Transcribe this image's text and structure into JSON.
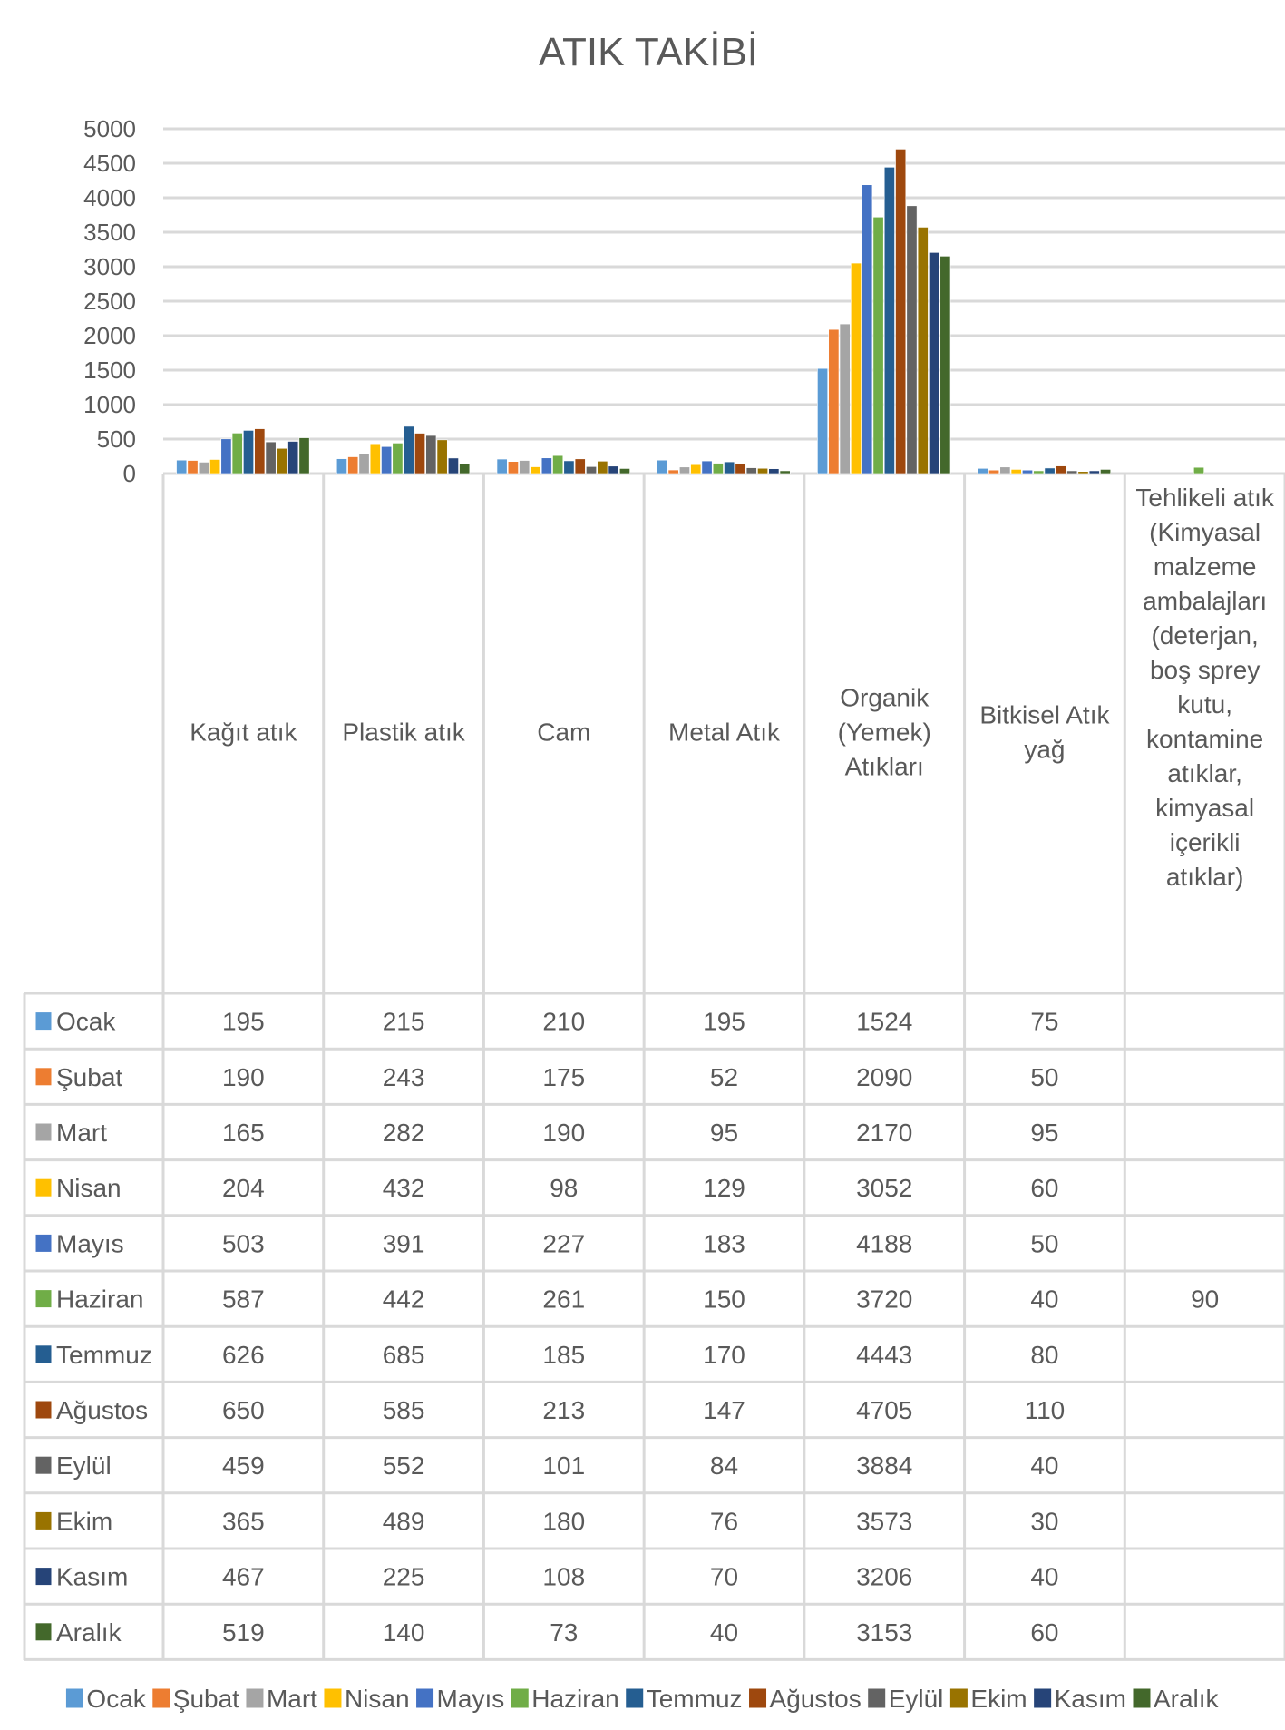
{
  "chart_data": {
    "type": "bar",
    "title": "ATIK TAKİBİ",
    "xlabel": "",
    "ylabel": "",
    "ylim": [
      0,
      5000
    ],
    "yticks": [
      0,
      500,
      1000,
      1500,
      2000,
      2500,
      3000,
      3500,
      4000,
      4500,
      5000
    ],
    "grid": true,
    "legend_position": "bottom",
    "data_table": true,
    "categories": [
      [
        "Kağıt atık"
      ],
      [
        "Plastik atık"
      ],
      [
        "Cam"
      ],
      [
        "Metal Atık"
      ],
      [
        "Organik",
        "(Yemek)",
        "Atıkları"
      ],
      [
        "Bitkisel Atık",
        "yağ"
      ],
      [
        "Tehlikeli atık",
        "(Kimyasal",
        "malzeme",
        "ambalajları",
        "(deterjan,",
        "boş sprey",
        "kutu,",
        "kontamine",
        "atıklar,",
        "kimyasal",
        "içerikli",
        "atıklar)"
      ]
    ],
    "series": [
      {
        "name": "Ocak",
        "color": "#5B9BD5",
        "values": [
          195,
          215,
          210,
          195,
          1524,
          75,
          null
        ]
      },
      {
        "name": "Şubat",
        "color": "#ED7D31",
        "values": [
          190,
          243,
          175,
          52,
          2090,
          50,
          null
        ]
      },
      {
        "name": "Mart",
        "color": "#A5A5A5",
        "values": [
          165,
          282,
          190,
          95,
          2170,
          95,
          null
        ]
      },
      {
        "name": "Nisan",
        "color": "#FFC000",
        "values": [
          204,
          432,
          98,
          129,
          3052,
          60,
          null
        ]
      },
      {
        "name": "Mayıs",
        "color": "#4472C4",
        "values": [
          503,
          391,
          227,
          183,
          4188,
          50,
          null
        ]
      },
      {
        "name": "Haziran",
        "color": "#70AD47",
        "values": [
          587,
          442,
          261,
          150,
          3720,
          40,
          90
        ]
      },
      {
        "name": "Temmuz",
        "color": "#255E91",
        "values": [
          626,
          685,
          185,
          170,
          4443,
          80,
          null
        ]
      },
      {
        "name": "Ağustos",
        "color": "#9E480E",
        "values": [
          650,
          585,
          213,
          147,
          4705,
          110,
          null
        ]
      },
      {
        "name": "Eylül",
        "color": "#636363",
        "values": [
          459,
          552,
          101,
          84,
          3884,
          40,
          null
        ]
      },
      {
        "name": "Ekim",
        "color": "#997300",
        "values": [
          365,
          489,
          180,
          76,
          3573,
          30,
          null
        ]
      },
      {
        "name": "Kasım",
        "color": "#264478",
        "values": [
          467,
          225,
          108,
          70,
          3206,
          40,
          null
        ]
      },
      {
        "name": "Aralık",
        "color": "#43682B",
        "values": [
          519,
          140,
          73,
          40,
          3153,
          60,
          null
        ]
      }
    ]
  }
}
